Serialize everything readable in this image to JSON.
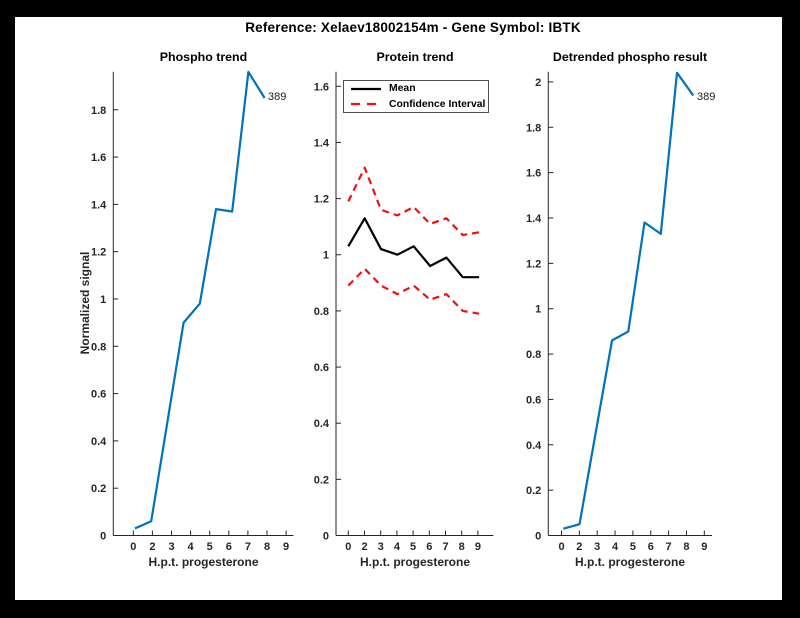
{
  "window": {
    "outer_background": "#000000",
    "figure_background": "#ffffff"
  },
  "header": {
    "title": "Reference:  Xelaev18002154m - Gene Symbol:  IBTK"
  },
  "colors": {
    "phospho_line": "#0072bd",
    "mean_line": "#000000",
    "ci_line": "#f20f0f",
    "axis": "#262626",
    "text": "#262626"
  },
  "chart_data": [
    {
      "id": "phospho-trend",
      "type": "line",
      "title": "Phospho trend",
      "xlabel": "H.p.t. progesterone",
      "ylabel": "Normalized signal",
      "x_tick_labels": [
        "0",
        "2",
        "3",
        "4",
        "5",
        "6",
        "7",
        "8",
        "9"
      ],
      "y_tick_values": [
        0,
        0.2,
        0.4,
        0.6,
        0.8,
        1,
        1.2,
        1.4,
        1.6,
        1.8
      ],
      "y_tick_labels": [
        "0",
        "0.2",
        "0.4",
        "0.6",
        "0.8",
        "1",
        "1.2",
        "1.4",
        "1.6",
        "1.8"
      ],
      "ylim": [
        0,
        1.961
      ],
      "grid": false,
      "series": [
        {
          "name": "phospho",
          "color": "#0072bd",
          "style": "solid",
          "x_slots": [
            0,
            1,
            3,
            4,
            5,
            6,
            7,
            8
          ],
          "x_point_labels": [
            "0",
            "2",
            "4",
            "5",
            "6",
            "7",
            "8",
            "9"
          ],
          "values": [
            0.03,
            0.06,
            0.9,
            0.98,
            1.38,
            1.37,
            1.96,
            1.85
          ]
        }
      ],
      "annotation": {
        "text": "389"
      }
    },
    {
      "id": "protein-trend",
      "type": "line",
      "title": "Protein trend",
      "xlabel": "H.p.t. progesterone",
      "ylabel": "",
      "x_tick_labels": [
        "0",
        "2",
        "3",
        "4",
        "5",
        "6",
        "7",
        "8",
        "9"
      ],
      "y_tick_values": [
        0,
        0.2,
        0.4,
        0.6,
        0.8,
        1,
        1.2,
        1.4,
        1.6
      ],
      "y_tick_labels": [
        "0",
        "0.2",
        "0.4",
        "0.6",
        "0.8",
        "1",
        "1.2",
        "1.4",
        "1.6"
      ],
      "ylim": [
        0,
        1.652
      ],
      "grid": false,
      "legend": [
        {
          "label": "Mean"
        },
        {
          "label": "Confidence Interval"
        }
      ],
      "series": [
        {
          "name": "mean",
          "color": "#000000",
          "style": "solid",
          "x_slots": [
            0,
            1,
            2,
            3,
            4,
            5,
            6,
            7,
            8
          ],
          "x_point_labels": [
            "0",
            "2",
            "3",
            "4",
            "5",
            "6",
            "7",
            "8",
            "9"
          ],
          "values": [
            1.03,
            1.13,
            1.02,
            1.0,
            1.03,
            0.96,
            0.99,
            0.92,
            0.92
          ]
        },
        {
          "name": "ci-upper",
          "color": "#f20f0f",
          "style": "dashed",
          "x_slots": [
            0,
            1,
            2,
            3,
            4,
            5,
            6,
            7,
            8
          ],
          "x_point_labels": [
            "0",
            "2",
            "3",
            "4",
            "5",
            "6",
            "7",
            "8",
            "9"
          ],
          "values": [
            1.19,
            1.31,
            1.16,
            1.14,
            1.17,
            1.11,
            1.13,
            1.07,
            1.08
          ]
        },
        {
          "name": "ci-lower",
          "color": "#f20f0f",
          "style": "dashed",
          "x_slots": [
            0,
            1,
            2,
            3,
            4,
            5,
            6,
            7,
            8
          ],
          "x_point_labels": [
            "0",
            "2",
            "3",
            "4",
            "5",
            "6",
            "7",
            "8",
            "9"
          ],
          "values": [
            0.89,
            0.95,
            0.89,
            0.86,
            0.89,
            0.84,
            0.86,
            0.8,
            0.79
          ]
        }
      ]
    },
    {
      "id": "detrended-phospho",
      "type": "line",
      "title": "Detrended phospho result",
      "xlabel": "H.p.t. progesterone",
      "ylabel": "",
      "x_tick_labels": [
        "0",
        "2",
        "3",
        "4",
        "5",
        "6",
        "7",
        "8",
        "9"
      ],
      "y_tick_values": [
        0,
        0.2,
        0.4,
        0.6,
        0.8,
        1,
        1.2,
        1.4,
        1.6,
        1.8,
        2
      ],
      "y_tick_labels": [
        "0",
        "0.2",
        "0.4",
        "0.6",
        "0.8",
        "1",
        "1.2",
        "1.4",
        "1.6",
        "1.8",
        "2"
      ],
      "ylim": [
        0,
        2.045
      ],
      "grid": false,
      "series": [
        {
          "name": "detrended-phospho",
          "color": "#0072bd",
          "style": "solid",
          "x_slots": [
            0,
            1,
            3,
            4,
            5,
            6,
            7,
            8
          ],
          "x_point_labels": [
            "0",
            "2",
            "4",
            "5",
            "6",
            "7",
            "8",
            "9"
          ],
          "values": [
            0.03,
            0.05,
            0.86,
            0.9,
            1.38,
            1.33,
            2.04,
            1.94
          ]
        }
      ],
      "annotation": {
        "text": "389"
      }
    }
  ]
}
